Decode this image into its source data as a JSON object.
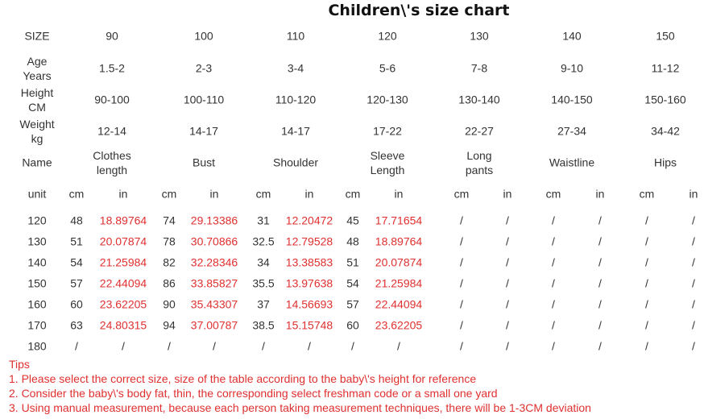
{
  "title": "Children\\'s size chart",
  "header_rows": [
    {
      "label": [
        "SIZE"
      ],
      "values": [
        [
          "90"
        ],
        [
          "100"
        ],
        [
          "110"
        ],
        [
          "120"
        ],
        [
          "130"
        ],
        [
          "140"
        ],
        [
          "150"
        ]
      ]
    },
    {
      "label": [
        "Age",
        "Years"
      ],
      "values": [
        [
          "1.5-2"
        ],
        [
          "2-3"
        ],
        [
          "3-4"
        ],
        [
          "5-6"
        ],
        [
          "7-8"
        ],
        [
          "9-10"
        ],
        [
          "11-12"
        ]
      ]
    },
    {
      "label": [
        "Height",
        "CM"
      ],
      "values": [
        [
          "90-100"
        ],
        [
          "100-110"
        ],
        [
          "110-120"
        ],
        [
          "120-130"
        ],
        [
          "130-140"
        ],
        [
          "140-150"
        ],
        [
          "150-160"
        ]
      ]
    },
    {
      "label": [
        "Weight",
        "kg"
      ],
      "values": [
        [
          "12-14"
        ],
        [
          "14-17"
        ],
        [
          "14-17"
        ],
        [
          "17-22"
        ],
        [
          "22-27"
        ],
        [
          "27-34"
        ],
        [
          "34-42"
        ]
      ]
    },
    {
      "label": [
        "Name"
      ],
      "values": [
        [
          "Clothes",
          "length"
        ],
        [
          "Bust"
        ],
        [
          "Shoulder"
        ],
        [
          "Sleeve",
          "Length"
        ],
        [
          "Long",
          "pants"
        ],
        [
          "Waistline"
        ],
        [
          "Hips"
        ]
      ]
    }
  ],
  "unit_row": [
    "unit",
    "cm",
    "in",
    "cm",
    "in",
    "cm",
    "in",
    "cm",
    "in",
    "cm",
    "in",
    "cm",
    "in",
    "cm",
    "in"
  ],
  "measure_rows": [
    [
      "120",
      "48",
      "18.89764",
      "74",
      "29.13386",
      "31",
      "12.20472",
      "45",
      "17.71654",
      "/",
      "/",
      "/",
      "/",
      "/",
      "/"
    ],
    [
      "130",
      "51",
      "20.07874",
      "78",
      "30.70866",
      "32.5",
      "12.79528",
      "48",
      "18.89764",
      "/",
      "/",
      "/",
      "/",
      "/",
      "/"
    ],
    [
      "140",
      "54",
      "21.25984",
      "82",
      "32.28346",
      "34",
      "13.38583",
      "51",
      "20.07874",
      "/",
      "/",
      "/",
      "/",
      "/",
      "/"
    ],
    [
      "150",
      "57",
      "22.44094",
      "86",
      "33.85827",
      "35.5",
      "13.97638",
      "54",
      "21.25984",
      "/",
      "/",
      "/",
      "/",
      "/",
      "/"
    ],
    [
      "160",
      "60",
      "23.62205",
      "90",
      "35.43307",
      "37",
      "14.56693",
      "57",
      "22.44094",
      "/",
      "/",
      "/",
      "/",
      "/",
      "/"
    ],
    [
      "170",
      "63",
      "24.80315",
      "94",
      "37.00787",
      "38.5",
      "15.15748",
      "60",
      "23.62205",
      "/",
      "/",
      "/",
      "/",
      "/",
      "/"
    ],
    [
      "180",
      "/",
      "/",
      "/",
      "/",
      "/",
      "/",
      "/",
      "/",
      "/",
      "/",
      "/",
      "/",
      "/",
      "/"
    ]
  ],
  "tips": {
    "heading": "Tips",
    "lines": [
      "1. Please select the correct size, size of the table according to the baby\\'s height for reference",
      "2. Consider the baby\\'s body fat, thin, the corresponding select freshman code or a small one yard",
      "3. Using manual measurement, because each person taking measurement techniques, there will be 1-3CM deviation"
    ]
  },
  "colors": {
    "text": "#333333",
    "accent_red": "#e03030"
  }
}
